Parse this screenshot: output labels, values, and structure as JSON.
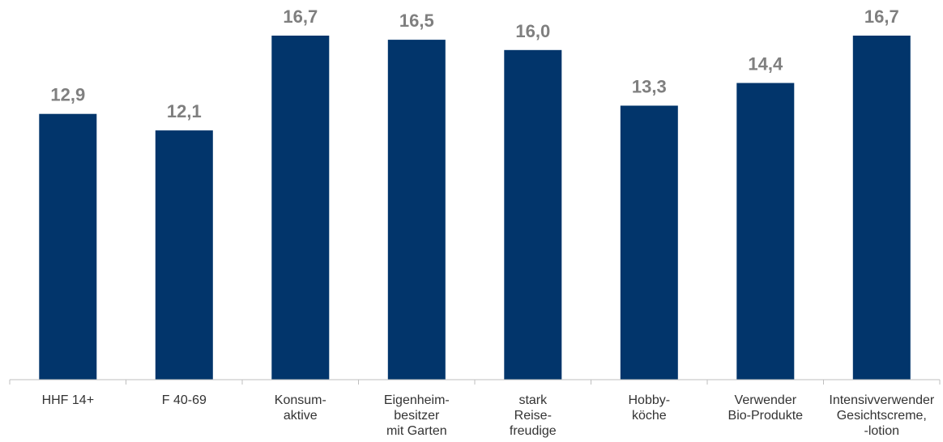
{
  "chart_data": {
    "type": "bar",
    "categories": [
      [
        "HHF 14+"
      ],
      [
        "F 40-69"
      ],
      [
        "Konsum-",
        "aktive"
      ],
      [
        "Eigenheim-",
        "besitzer",
        "mit Garten"
      ],
      [
        "stark",
        "Reise-",
        "freudige"
      ],
      [
        "Hobby-",
        "köche"
      ],
      [
        "Verwender",
        "Bio-Produkte"
      ],
      [
        "Intensivverwender",
        "Gesichtscreme,",
        "-lotion"
      ]
    ],
    "values": [
      12.9,
      12.1,
      16.7,
      16.5,
      16.0,
      13.3,
      14.4,
      16.7
    ],
    "value_labels": [
      "12,9",
      "12,1",
      "16,7",
      "16,5",
      "16,0",
      "13,3",
      "14,4",
      "16,7"
    ],
    "ylim": [
      0,
      16.7
    ],
    "grid": false,
    "legend": "none",
    "colors": {
      "bar": "#02356b",
      "value_label": "#7f7f7f",
      "axis": "#bfbfbf",
      "category_label": "#333333"
    }
  }
}
